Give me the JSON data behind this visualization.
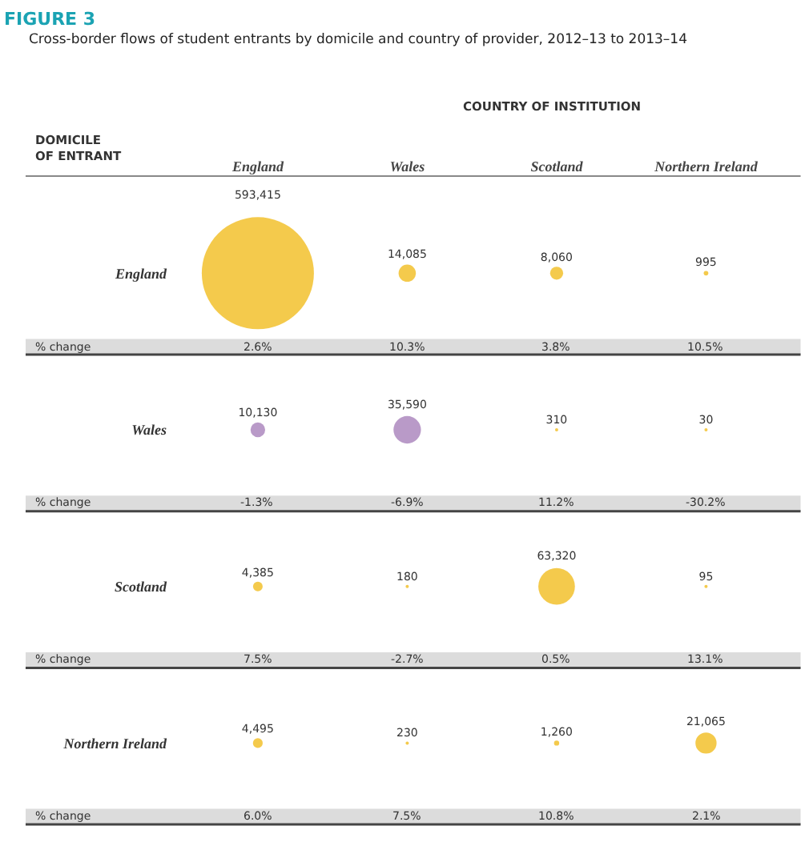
{
  "chart_data": {
    "type": "heatmap",
    "title": "FIGURE 3",
    "subtitle": "Cross-border flows of student entrants by domicile and country of provider, 2012–13 to 2013–14",
    "xlabel": "COUNTRY OF INSTITUTION",
    "categories": [
      "England",
      "Wales",
      "Scotland",
      "Northern Ireland"
    ],
    "y_categories": [
      "England",
      "Wales",
      "Scotland",
      "Northern Ireland"
    ],
    "cells": [
      [
        593415,
        14085,
        8060,
        995
      ],
      [
        10130,
        35590,
        310,
        30
      ],
      [
        4385,
        180,
        63320,
        95
      ],
      [
        4495,
        230,
        1260,
        21065
      ]
    ],
    "cell_labels": [
      [
        "593,415",
        "14,085",
        "8,060",
        "995"
      ],
      [
        "10,130",
        "35,590",
        "310",
        "30"
      ],
      [
        "4,385",
        "180",
        "63,320",
        "95"
      ],
      [
        "4,495",
        "230",
        "1,260",
        "21,065"
      ]
    ],
    "colors": [
      [
        "#f0b400",
        "#f0b400",
        "#f0b400",
        "#f0b400"
      ],
      [
        "#9b6fb0",
        "#9b6fb0",
        "#f0b400",
        "#f0b400"
      ],
      [
        "#f0b400",
        "#f0b400",
        "#f0b400",
        "#f0b400"
      ],
      [
        "#f0b400",
        "#f0b400",
        "#f0b400",
        "#f0b400"
      ]
    ],
    "annotations": [
      "DOMICILE\nOF ENTRANT",
      "% change",
      "2.6%",
      "10.3%",
      "3.8%",
      "10.5%",
      "% change",
      "-1.3%",
      "-6.9%",
      "11.2%",
      "-30.2%",
      "% change",
      "7.5%",
      "-2.7%",
      "0.5%",
      "13.1%",
      "% change",
      "6.0%",
      "7.5%",
      "10.8%",
      "2.1%"
    ],
    "grid": false,
    "legend": false
  }
}
